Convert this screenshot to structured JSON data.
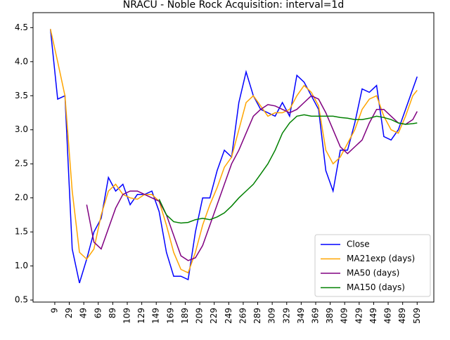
{
  "chart_data": {
    "type": "line",
    "title": "NRACU - Noble Rock Acquisition: interval=1d",
    "x": [
      3,
      13,
      23,
      33,
      43,
      53,
      63,
      73,
      83,
      93,
      103,
      113,
      123,
      133,
      143,
      153,
      163,
      173,
      183,
      193,
      203,
      213,
      223,
      233,
      243,
      253,
      263,
      273,
      283,
      293,
      303,
      313,
      323,
      333,
      343,
      353,
      363,
      373,
      383,
      393,
      403,
      413,
      423,
      433,
      443,
      453,
      463,
      473,
      483,
      493,
      503,
      509
    ],
    "series": [
      {
        "name": "Close",
        "color": "#0000ff",
        "values": [
          4.48,
          3.45,
          3.5,
          1.25,
          0.75,
          1.1,
          1.5,
          1.7,
          2.3,
          2.1,
          2.2,
          1.9,
          2.05,
          2.05,
          2.1,
          1.8,
          1.2,
          0.85,
          0.85,
          0.8,
          1.5,
          2.0,
          2.0,
          2.4,
          2.7,
          2.6,
          3.4,
          3.85,
          3.5,
          3.3,
          3.25,
          3.2,
          3.4,
          3.2,
          3.8,
          3.7,
          3.5,
          3.3,
          2.4,
          2.1,
          2.7,
          2.7,
          3.1,
          3.6,
          3.55,
          3.65,
          2.9,
          2.85,
          3.0,
          3.3,
          3.6,
          3.78
        ]
      },
      {
        "name": "MA21exp (days)",
        "color": "#ffa500",
        "values": [
          4.48,
          4.0,
          3.5,
          2.1,
          1.2,
          1.1,
          1.25,
          1.75,
          2.1,
          2.2,
          2.05,
          2.0,
          1.98,
          2.05,
          2.05,
          1.95,
          1.6,
          1.2,
          0.95,
          0.9,
          1.2,
          1.6,
          1.9,
          2.15,
          2.45,
          2.6,
          3.0,
          3.4,
          3.5,
          3.35,
          3.2,
          3.25,
          3.25,
          3.3,
          3.5,
          3.65,
          3.55,
          3.35,
          2.7,
          2.5,
          2.6,
          2.8,
          3.0,
          3.3,
          3.45,
          3.5,
          3.2,
          3.0,
          2.95,
          3.2,
          3.5,
          3.58
        ]
      },
      {
        "name": "MA50 (days)",
        "color": "#800080",
        "values": [
          null,
          null,
          null,
          null,
          null,
          1.9,
          1.35,
          1.25,
          1.55,
          1.85,
          2.05,
          2.1,
          2.1,
          2.05,
          2.0,
          1.95,
          1.75,
          1.45,
          1.15,
          1.08,
          1.12,
          1.3,
          1.6,
          1.9,
          2.2,
          2.5,
          2.7,
          2.95,
          3.2,
          3.3,
          3.37,
          3.35,
          3.3,
          3.25,
          3.3,
          3.4,
          3.5,
          3.45,
          3.25,
          3.0,
          2.75,
          2.65,
          2.75,
          2.85,
          3.1,
          3.3,
          3.3,
          3.2,
          3.1,
          3.08,
          3.15,
          3.27
        ]
      },
      {
        "name": "MA150 (days)",
        "color": "#008000",
        "values": [
          null,
          null,
          null,
          null,
          null,
          null,
          null,
          null,
          null,
          null,
          null,
          null,
          null,
          null,
          null,
          1.98,
          1.75,
          1.65,
          1.63,
          1.64,
          1.68,
          1.7,
          1.68,
          1.72,
          1.78,
          1.88,
          2.0,
          2.1,
          2.2,
          2.35,
          2.5,
          2.7,
          2.95,
          3.1,
          3.2,
          3.22,
          3.2,
          3.2,
          3.2,
          3.2,
          3.18,
          3.17,
          3.15,
          3.15,
          3.17,
          3.2,
          3.18,
          3.15,
          3.1,
          3.08,
          3.09,
          3.1
        ]
      }
    ],
    "xlim": [
      -21,
      532
    ],
    "ylim": [
      0.47,
      4.72
    ],
    "xticks": [
      9,
      29,
      49,
      69,
      89,
      109,
      129,
      149,
      169,
      189,
      209,
      229,
      249,
      269,
      289,
      309,
      329,
      349,
      369,
      389,
      409,
      429,
      449,
      469,
      489,
      509
    ],
    "yticks": [
      0.5,
      {
        "value": 1,
        "label": "1.0"
      },
      1.5,
      {
        "value": 2,
        "label": "2.0"
      },
      2.5,
      {
        "value": 3,
        "label": "3.0"
      },
      3.5,
      {
        "value": 4,
        "label": "4.0"
      },
      4.5
    ],
    "legend": "lower right"
  }
}
